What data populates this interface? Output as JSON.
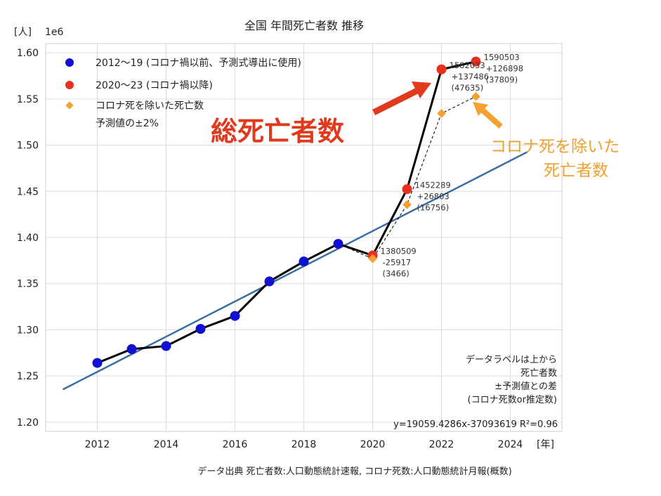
{
  "chart_data": {
    "type": "line",
    "title": "全国 年間死亡者数 推移",
    "xlabel": "[年]",
    "ylabel": "[人]",
    "y_scale_label": "1e6",
    "xlim": [
      2010.5,
      2025.5
    ],
    "ylim": [
      1.19,
      1.61
    ],
    "x_ticks": [
      "2012",
      "2014",
      "2016",
      "2018",
      "2020",
      "2022",
      "2024"
    ],
    "y_ticks": [
      "1.20",
      "1.25",
      "1.30",
      "1.35",
      "1.40",
      "1.45",
      "1.50",
      "1.55",
      "1.60"
    ],
    "grid": true,
    "legend_position": "top-left",
    "series": [
      {
        "name": "2012～19 (コロナ禍以前、予測式導出に使用)",
        "color": "#1010d0",
        "marker": "circle",
        "x": [
          2012,
          2013,
          2014,
          2015,
          2016,
          2017,
          2018,
          2019
        ],
        "y": [
          1.2641,
          1.2791,
          1.2824,
          1.301,
          1.315,
          1.3524,
          1.374,
          1.3931
        ]
      },
      {
        "name": "2020～23 (コロナ禍以降)",
        "color": "#e8301e",
        "marker": "circle",
        "x": [
          2020,
          2021,
          2022,
          2023
        ],
        "y": [
          1.380509,
          1.452289,
          1.582033,
          1.590503
        ]
      },
      {
        "name": "コロナ死を除いた死亡数",
        "color": "#f5a030",
        "marker": "diamond",
        "dashed_line": true,
        "x": [
          2020,
          2021,
          2022,
          2023
        ],
        "y": [
          1.377043,
          1.435533,
          1.534398,
          1.552694
        ]
      }
    ],
    "legend_extra": "予測値の±2%",
    "regression": {
      "color": "#3a6fa0",
      "x_range": [
        2011,
        2024.5
      ],
      "slope_per_year": 0.0190594286,
      "intercept_at_2012": 1.25446,
      "label": "y=19059.4286x-37093619   R²=0.96"
    },
    "data_labels": [
      {
        "x": 2020,
        "lines": [
          "1380509",
          "-25917",
          "(3466)"
        ]
      },
      {
        "x": 2021,
        "lines": [
          "1452289",
          "+26803",
          "(16756)"
        ]
      },
      {
        "x": 2022,
        "lines": [
          "1582033",
          "+137486",
          "(47635)"
        ]
      },
      {
        "x": 2023,
        "lines": [
          "1590503",
          "+126898",
          "(37809)"
        ]
      }
    ],
    "annotations": {
      "total_deaths": {
        "text": "総死亡者数",
        "color": "#e03a1e"
      },
      "non_covid": {
        "lines": [
          "コロナ死を除いた",
          "死亡者数"
        ],
        "color": "#f0a030"
      },
      "note": [
        "データラベルは上から",
        "死亡者数",
        "±予測値との差",
        "(コロナ死数or推定数)"
      ]
    },
    "source": "データ出典 死亡者数:人口動態統計速報, コロナ死数:人口動態統計月報(概数)"
  }
}
